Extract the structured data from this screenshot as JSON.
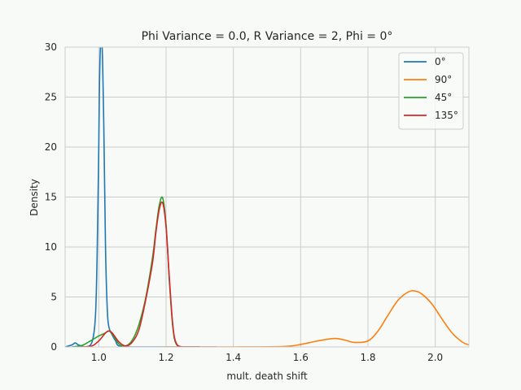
{
  "chart_data": {
    "type": "line",
    "title": "Phi Variance = 0.0, R Variance = 2, Phi = 0°",
    "xlabel": "mult. death shift",
    "ylabel": "Density",
    "xlim": [
      0.9,
      2.1
    ],
    "ylim": [
      0,
      30
    ],
    "xticks": [
      1.0,
      1.2,
      1.4,
      1.6,
      1.8,
      2.0
    ],
    "xtick_labels": [
      "1.0",
      "1.2",
      "1.4",
      "1.6",
      "1.8",
      "2.0"
    ],
    "yticks": [
      0,
      5,
      10,
      15,
      20,
      25,
      30
    ],
    "ytick_labels": [
      "0",
      "5",
      "10",
      "15",
      "20",
      "25",
      "30"
    ],
    "grid": true,
    "legend_position": "top-right",
    "series": [
      {
        "name": "0°",
        "color": "#1f77b4",
        "x": [
          0.9,
          0.92,
          0.93,
          0.94,
          0.96,
          0.98,
          0.99,
          0.995,
          1.0,
          1.002,
          1.005,
          1.01,
          1.015,
          1.02,
          1.025,
          1.03,
          1.04,
          1.05,
          1.06,
          1.1,
          1.2,
          1.3,
          1.35
        ],
        "y": [
          0,
          0.2,
          0.4,
          0.2,
          0,
          0.5,
          3.0,
          9.0,
          20.0,
          26.0,
          30.0,
          30.0,
          22.0,
          10.0,
          4.0,
          2.0,
          1.2,
          0.6,
          0.1,
          0,
          0,
          0,
          0
        ]
      },
      {
        "name": "90°",
        "color": "#ff7f0e",
        "x": [
          1.2,
          1.4,
          1.55,
          1.6,
          1.65,
          1.7,
          1.73,
          1.76,
          1.8,
          1.83,
          1.86,
          1.89,
          1.92,
          1.94,
          1.96,
          1.99,
          2.02,
          2.05,
          2.08,
          2.1
        ],
        "y": [
          0,
          0,
          0.05,
          0.25,
          0.6,
          0.85,
          0.7,
          0.45,
          0.6,
          1.6,
          3.2,
          4.7,
          5.5,
          5.6,
          5.3,
          4.3,
          2.8,
          1.4,
          0.5,
          0.2
        ]
      },
      {
        "name": "45°",
        "color": "#2ca02c",
        "x": [
          0.92,
          0.95,
          0.97,
          0.99,
          1.0,
          1.02,
          1.03,
          1.04,
          1.06,
          1.08,
          1.1,
          1.12,
          1.14,
          1.16,
          1.17,
          1.18,
          1.19,
          1.2,
          1.21,
          1.22,
          1.23,
          1.25,
          1.3
        ],
        "y": [
          0,
          0.15,
          0.5,
          0.9,
          1.1,
          1.4,
          1.6,
          1.3,
          0.3,
          0.1,
          0.7,
          2.3,
          5.0,
          9.0,
          11.8,
          14.2,
          14.9,
          12.2,
          6.5,
          2.0,
          0.3,
          0,
          0
        ]
      },
      {
        "name": "135°",
        "color": "#d62728",
        "x": [
          0.95,
          0.98,
          1.0,
          1.02,
          1.03,
          1.04,
          1.06,
          1.08,
          1.1,
          1.12,
          1.14,
          1.16,
          1.17,
          1.18,
          1.19,
          1.2,
          1.21,
          1.22,
          1.23,
          1.25,
          1.3
        ],
        "y": [
          0,
          0.1,
          0.6,
          1.4,
          1.6,
          1.4,
          0.5,
          0.1,
          0.5,
          1.8,
          4.8,
          8.5,
          11.5,
          13.8,
          14.4,
          12.0,
          6.8,
          2.2,
          0.4,
          0,
          0
        ]
      }
    ]
  }
}
